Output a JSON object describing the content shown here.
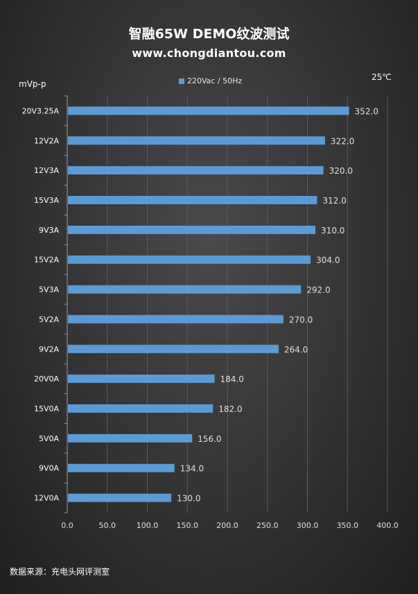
{
  "header": {
    "title": "智融65W DEMO纹波测试",
    "subtitle": "www.chongdiantou.com",
    "unit_label": "mVp-p",
    "temperature": "25℃"
  },
  "footer": {
    "source": "数据来源：充电头网评测室"
  },
  "colors": {
    "bar": "#5b9bd5",
    "grid": "#5a5a5a"
  },
  "chart_data": {
    "type": "bar",
    "orientation": "horizontal",
    "categories": [
      "20V3.25A",
      "12V2A",
      "12V3A",
      "15V3A",
      "9V3A",
      "15V2A",
      "5V3A",
      "5V2A",
      "9V2A",
      "20V0A",
      "15V0A",
      "5V0A",
      "9V0A",
      "12V0A"
    ],
    "series": [
      {
        "name": "220Vac / 50Hz",
        "values": [
          352.0,
          322.0,
          320.0,
          312.0,
          310.0,
          304.0,
          292.0,
          270.0,
          264.0,
          184.0,
          182.0,
          156.0,
          134.0,
          130.0
        ]
      }
    ],
    "value_labels": [
      "352.0",
      "322.0",
      "320.0",
      "312.0",
      "310.0",
      "304.0",
      "292.0",
      "270.0",
      "264.0",
      "184.0",
      "182.0",
      "156.0",
      "134.0",
      "130.0"
    ],
    "xlim": [
      0,
      400
    ],
    "xticks": [
      0,
      50,
      100,
      150,
      200,
      250,
      300,
      350,
      400
    ],
    "xtick_labels": [
      "0.0",
      "50.0",
      "100.0",
      "150.0",
      "200.0",
      "250.0",
      "300.0",
      "350.0",
      "400.0"
    ],
    "legend_position": "top-center",
    "grid": true
  }
}
